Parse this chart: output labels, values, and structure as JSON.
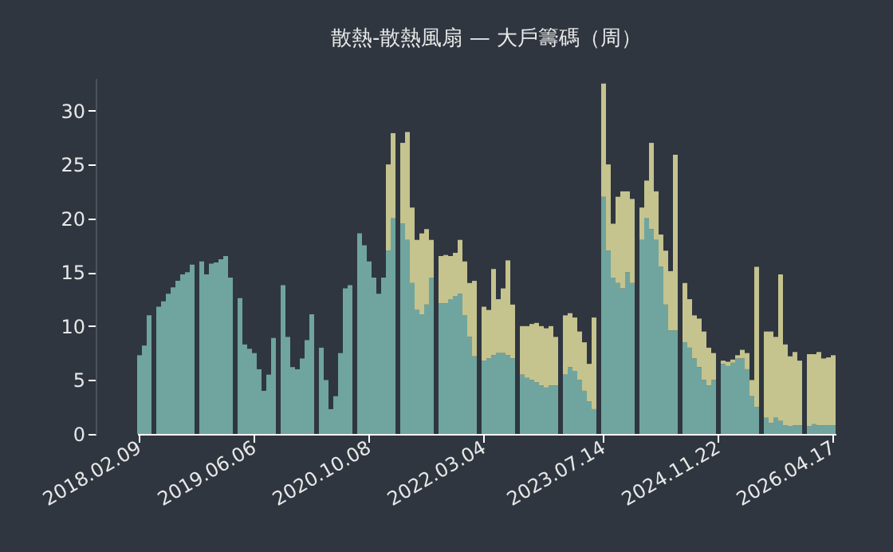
{
  "chart_data": {
    "type": "bar",
    "title": "散熱-散熱風扇 — 大戶籌碼（周）",
    "stacked": true,
    "grid": false,
    "categories": [
      "2018.02.09",
      null,
      null,
      null,
      null,
      null,
      null,
      null,
      null,
      null,
      null,
      null,
      null,
      null,
      null,
      null,
      null,
      null,
      null,
      null,
      null,
      null,
      null,
      null,
      "2019.06.06",
      null,
      null,
      null,
      null,
      null,
      null,
      null,
      null,
      null,
      null,
      null,
      null,
      null,
      null,
      null,
      null,
      null,
      null,
      null,
      null,
      null,
      null,
      null,
      "2020.10.08",
      null,
      null,
      null,
      null,
      null,
      null,
      null,
      null,
      null,
      null,
      null,
      null,
      null,
      null,
      null,
      null,
      null,
      null,
      null,
      null,
      null,
      null,
      null,
      "2022.03.04",
      null,
      null,
      null,
      null,
      null,
      null,
      null,
      null,
      null,
      null,
      null,
      null,
      null,
      null,
      null,
      null,
      null,
      null,
      null,
      null,
      null,
      null,
      null,
      null,
      "2023.07.14",
      null,
      null,
      null,
      null,
      null,
      null,
      null,
      null,
      null,
      null,
      null,
      null,
      null,
      null,
      null,
      null,
      null,
      null,
      null,
      null,
      null,
      null,
      null,
      "2024.11.22",
      null,
      null,
      null,
      null,
      null,
      null,
      null,
      null,
      null,
      null,
      null,
      null,
      null,
      null,
      null,
      null,
      null,
      null,
      null,
      null,
      null,
      null,
      null,
      "2026.04.17"
    ],
    "ylim": [
      0,
      33
    ],
    "yticks": [
      0,
      5,
      10,
      15,
      20,
      25,
      30
    ],
    "series": [
      {
        "color": "#6fa59e",
        "values": [
          7.3,
          8.2,
          11,
          null,
          11.8,
          12.3,
          13,
          13.6,
          14.2,
          14.8,
          15,
          15.7,
          null,
          16,
          14.8,
          15.8,
          15.9,
          16.2,
          16.5,
          14.5,
          null,
          12.6,
          8.3,
          7.9,
          7.5,
          6,
          4,
          5.5,
          8.9,
          null,
          13.8,
          9,
          6.2,
          6,
          7,
          8.7,
          11.1,
          null,
          8,
          5,
          2.3,
          3.5,
          7.5,
          13.5,
          13.8,
          null,
          18.6,
          17.5,
          16,
          14.5,
          13,
          14.5,
          17,
          20,
          null,
          19.5,
          18,
          14,
          11.5,
          11.1,
          12,
          14.5,
          null,
          12.1,
          12.1,
          12.5,
          12.8,
          13,
          11,
          9,
          7.2,
          null,
          6.8,
          7,
          7.3,
          7.5,
          7.5,
          7.3,
          7,
          null,
          5.5,
          5.2,
          5,
          4.8,
          4.5,
          4.3,
          4.5,
          4.5,
          null,
          5.5,
          6.2,
          5.8,
          5,
          4,
          3,
          2.3,
          null,
          22,
          17,
          14.5,
          14,
          13.5,
          15,
          14,
          null,
          18,
          20,
          19,
          18,
          15.5,
          12,
          9.6,
          9.6,
          null,
          8.5,
          8,
          7,
          6.2,
          5,
          4.5,
          5,
          null,
          6.5,
          6.3,
          6.6,
          7,
          7,
          6,
          3.5,
          2.5,
          null,
          1.5,
          1,
          1.5,
          1.2,
          0.8,
          0.7,
          0.8,
          0.8,
          null,
          0.7,
          0.9,
          0.8,
          0.8,
          0.8,
          0.8
        ]
      },
      {
        "color": "#c5c38e",
        "values": [
          null,
          null,
          null,
          null,
          null,
          null,
          null,
          null,
          null,
          null,
          null,
          null,
          null,
          null,
          null,
          null,
          null,
          null,
          null,
          null,
          null,
          null,
          null,
          null,
          null,
          null,
          null,
          null,
          null,
          null,
          null,
          null,
          null,
          null,
          null,
          null,
          null,
          null,
          null,
          null,
          null,
          null,
          null,
          null,
          null,
          null,
          null,
          null,
          null,
          null,
          null,
          null,
          8,
          7.9,
          null,
          7.5,
          10,
          7,
          6.5,
          7.5,
          7,
          3.5,
          null,
          4.4,
          4.5,
          4,
          4,
          5,
          5,
          5,
          7,
          null,
          5,
          4.5,
          8,
          5,
          6,
          8.8,
          5,
          null,
          4.5,
          4.8,
          5.2,
          5.5,
          5.5,
          5.5,
          5.5,
          4.5,
          null,
          5.5,
          5,
          5,
          4.5,
          4.5,
          3.5,
          8.5,
          null,
          10.5,
          8,
          5,
          8,
          9,
          7.5,
          7.8,
          null,
          3,
          3.5,
          8,
          4.5,
          3,
          5,
          5.5,
          16.3,
          null,
          5.5,
          4.5,
          4,
          4.5,
          4.5,
          3.5,
          2.5,
          null,
          0.3,
          0.4,
          0.3,
          0.3,
          0.8,
          1.5,
          1.5,
          13,
          null,
          8,
          8.5,
          7.5,
          13.6,
          7.5,
          6.5,
          6.8,
          6,
          null,
          6.7,
          6.5,
          6.8,
          6.2,
          6.3,
          6.5
        ]
      }
    ]
  }
}
